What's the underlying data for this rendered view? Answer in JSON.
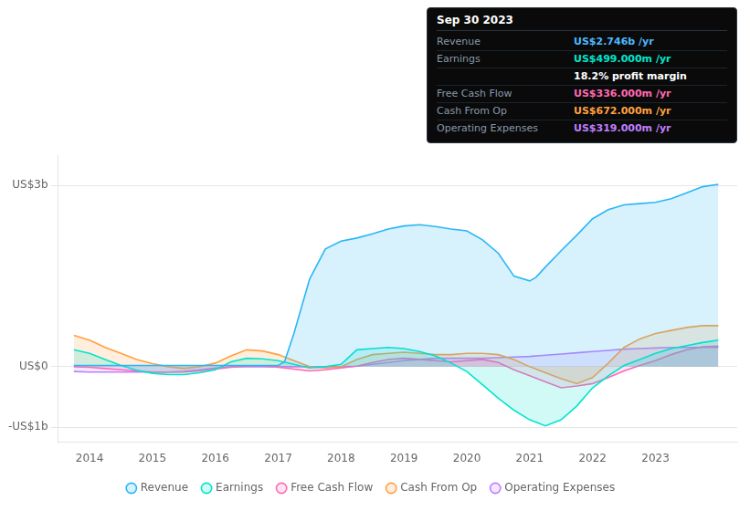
{
  "chart_data": {
    "type": "area",
    "annotation": {
      "title": "Sep 30 2023",
      "rows": [
        {
          "label": "Revenue",
          "value": "US$2.746b /yr",
          "color": "#4db8ff"
        },
        {
          "label": "Earnings",
          "value": "US$499.000m /yr",
          "color": "#00e5cc"
        },
        {
          "value": "18.2% profit margin",
          "color": "#ffffff"
        },
        {
          "label": "Free Cash Flow",
          "value": "US$336.000m /yr",
          "color": "#ff69b4"
        },
        {
          "label": "Cash From Op",
          "value": "US$672.000m /yr",
          "color": "#ffa040"
        },
        {
          "label": "Operating Expenses",
          "value": "US$319.000m /yr",
          "color": "#bf7fff"
        }
      ]
    },
    "xlim": [
      2013.5,
      2024.3
    ],
    "xticks": [
      2014,
      2015,
      2016,
      2017,
      2018,
      2019,
      2020,
      2021,
      2022,
      2023
    ],
    "ylim": [
      -1.25,
      3.5
    ],
    "yticks": [
      {
        "value": -1,
        "label": "-US$1b"
      },
      {
        "value": 0,
        "label": "US$0"
      },
      {
        "value": 3,
        "label": "US$3b"
      }
    ],
    "grid": "y",
    "legend": "bottom",
    "series": [
      {
        "name": "Revenue",
        "color": "#29b6f6",
        "x": [
          2013.75,
          2014.0,
          2014.25,
          2014.5,
          2014.75,
          2015.0,
          2015.25,
          2015.5,
          2015.75,
          2016.0,
          2016.25,
          2016.5,
          2016.75,
          2017.0,
          2017.1,
          2017.25,
          2017.5,
          2017.75,
          2018.0,
          2018.25,
          2018.5,
          2018.75,
          2019.0,
          2019.25,
          2019.5,
          2019.75,
          2020.0,
          2020.25,
          2020.5,
          2020.75,
          2021.0,
          2021.1,
          2021.25,
          2021.5,
          2021.75,
          2022.0,
          2022.25,
          2022.5,
          2022.75,
          2023.0,
          2023.25,
          2023.5,
          2023.75,
          2024.0
        ],
        "values": [
          0.02,
          0.02,
          0.02,
          0.02,
          0.02,
          0.02,
          0.02,
          0.02,
          0.02,
          0.02,
          0.02,
          0.02,
          0.02,
          0.02,
          0.08,
          0.55,
          1.45,
          1.95,
          2.08,
          2.13,
          2.2,
          2.28,
          2.33,
          2.35,
          2.32,
          2.28,
          2.25,
          2.1,
          1.88,
          1.5,
          1.42,
          1.48,
          1.65,
          1.92,
          2.18,
          2.45,
          2.6,
          2.68,
          2.7,
          2.72,
          2.78,
          2.88,
          2.98,
          3.02
        ]
      },
      {
        "name": "Earnings",
        "color": "#00e5cc",
        "x": [
          2013.75,
          2014.0,
          2014.25,
          2014.5,
          2014.75,
          2015.0,
          2015.25,
          2015.5,
          2015.75,
          2016.0,
          2016.25,
          2016.5,
          2016.75,
          2017.0,
          2017.25,
          2017.5,
          2017.75,
          2018.0,
          2018.25,
          2018.5,
          2018.75,
          2019.0,
          2019.25,
          2019.5,
          2019.75,
          2020.0,
          2020.25,
          2020.5,
          2020.75,
          2021.0,
          2021.25,
          2021.5,
          2021.75,
          2022.0,
          2022.25,
          2022.5,
          2022.75,
          2023.0,
          2023.25,
          2023.5,
          2023.75,
          2024.0
        ],
        "values": [
          0.28,
          0.22,
          0.12,
          0.02,
          -0.06,
          -0.11,
          -0.13,
          -0.13,
          -0.1,
          -0.05,
          0.08,
          0.14,
          0.13,
          0.1,
          0.04,
          -0.02,
          0.0,
          0.04,
          0.28,
          0.3,
          0.32,
          0.3,
          0.25,
          0.18,
          0.06,
          -0.08,
          -0.3,
          -0.52,
          -0.72,
          -0.88,
          -0.98,
          -0.88,
          -0.65,
          -0.35,
          -0.15,
          0.02,
          0.12,
          0.22,
          0.3,
          0.35,
          0.4,
          0.44
        ]
      },
      {
        "name": "Free Cash Flow",
        "color": "#ff69b4",
        "x": [
          2013.75,
          2014.0,
          2014.25,
          2014.5,
          2014.75,
          2015.0,
          2015.25,
          2015.5,
          2015.75,
          2016.0,
          2016.25,
          2016.5,
          2016.75,
          2017.0,
          2017.25,
          2017.5,
          2017.75,
          2018.0,
          2018.25,
          2018.5,
          2018.75,
          2019.0,
          2019.25,
          2019.5,
          2019.75,
          2020.0,
          2020.25,
          2020.5,
          2020.75,
          2021.0,
          2021.25,
          2021.5,
          2021.75,
          2022.0,
          2022.25,
          2022.5,
          2022.75,
          2023.0,
          2023.25,
          2023.5,
          2023.75,
          2024.0
        ],
        "values": [
          0.0,
          -0.01,
          -0.03,
          -0.05,
          -0.07,
          -0.09,
          -0.09,
          -0.09,
          -0.07,
          -0.04,
          -0.01,
          0.01,
          0.01,
          -0.01,
          -0.04,
          -0.07,
          -0.05,
          -0.02,
          0.01,
          0.07,
          0.12,
          0.14,
          0.12,
          0.1,
          0.08,
          0.1,
          0.12,
          0.07,
          -0.05,
          -0.15,
          -0.25,
          -0.35,
          -0.32,
          -0.28,
          -0.18,
          -0.07,
          0.02,
          0.1,
          0.2,
          0.28,
          0.33,
          0.34
        ]
      },
      {
        "name": "Cash From Op",
        "color": "#ffa040",
        "x": [
          2013.75,
          2014.0,
          2014.25,
          2014.5,
          2014.75,
          2015.0,
          2015.25,
          2015.5,
          2015.75,
          2016.0,
          2016.25,
          2016.5,
          2016.75,
          2017.0,
          2017.25,
          2017.5,
          2017.75,
          2018.0,
          2018.25,
          2018.5,
          2018.75,
          2019.0,
          2019.25,
          2019.5,
          2019.75,
          2020.0,
          2020.25,
          2020.5,
          2020.75,
          2021.0,
          2021.25,
          2021.5,
          2021.75,
          2022.0,
          2022.25,
          2022.5,
          2022.75,
          2023.0,
          2023.25,
          2023.5,
          2023.75,
          2024.0
        ],
        "values": [
          0.52,
          0.44,
          0.32,
          0.22,
          0.12,
          0.05,
          0.0,
          -0.03,
          0.0,
          0.06,
          0.18,
          0.28,
          0.26,
          0.2,
          0.1,
          0.0,
          -0.02,
          0.0,
          0.12,
          0.2,
          0.22,
          0.24,
          0.22,
          0.2,
          0.2,
          0.22,
          0.22,
          0.2,
          0.12,
          0.0,
          -0.1,
          -0.2,
          -0.28,
          -0.18,
          0.06,
          0.32,
          0.46,
          0.55,
          0.6,
          0.65,
          0.68,
          0.68
        ]
      },
      {
        "name": "Operating Expenses",
        "color": "#bf7fff",
        "x": [
          2013.75,
          2014.0,
          2014.25,
          2014.5,
          2014.75,
          2015.0,
          2015.25,
          2015.5,
          2015.75,
          2016.0,
          2016.25,
          2016.5,
          2016.75,
          2017.0,
          2017.25,
          2017.5,
          2017.75,
          2018.0,
          2018.25,
          2018.5,
          2018.75,
          2019.0,
          2019.25,
          2019.5,
          2019.75,
          2020.0,
          2020.25,
          2020.5,
          2020.75,
          2021.0,
          2021.25,
          2021.5,
          2021.75,
          2022.0,
          2022.25,
          2022.5,
          2022.75,
          2023.0,
          2023.25,
          2023.5,
          2023.75,
          2024.0
        ],
        "values": [
          -0.08,
          -0.09,
          -0.09,
          -0.09,
          -0.09,
          -0.09,
          -0.09,
          -0.08,
          -0.05,
          -0.02,
          0.0,
          0.0,
          0.0,
          0.0,
          0.0,
          0.0,
          0.0,
          0.0,
          0.01,
          0.04,
          0.07,
          0.1,
          0.12,
          0.14,
          0.14,
          0.14,
          0.14,
          0.15,
          0.16,
          0.17,
          0.19,
          0.21,
          0.23,
          0.25,
          0.27,
          0.29,
          0.3,
          0.31,
          0.32,
          0.32,
          0.32,
          0.32
        ]
      }
    ]
  }
}
